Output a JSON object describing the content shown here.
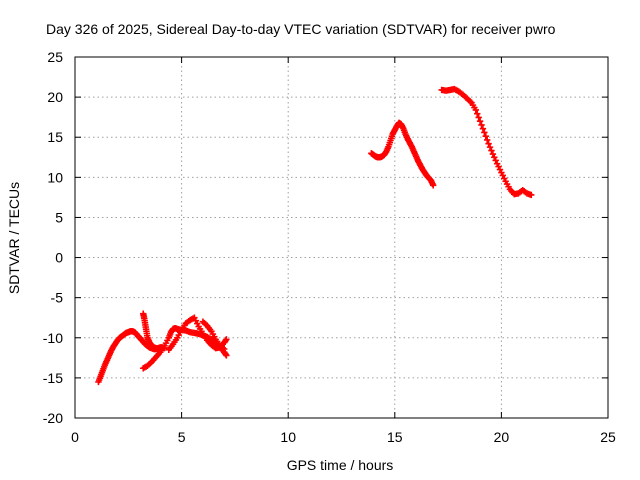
{
  "chart_data": {
    "type": "scatter",
    "title": "Day 326 of 2025, Sidereal Day-to-day VTEC variation (SDTVAR) for receiver pwro",
    "xlabel": "GPS time / hours",
    "ylabel": "SDTVAR / TECUs",
    "xlim": [
      0,
      25
    ],
    "ylim": [
      -20,
      25
    ],
    "xticks": [
      0,
      5,
      10,
      15,
      20,
      25
    ],
    "yticks": [
      -20,
      -15,
      -10,
      -5,
      0,
      5,
      10,
      15,
      20,
      25
    ],
    "xtick_labels": [
      "0",
      "5",
      "10",
      "15",
      "20",
      "25"
    ],
    "ytick_labels": [
      "-20",
      "-15",
      "-10",
      "-5",
      "0",
      "5",
      "10",
      "15",
      "20",
      "25"
    ],
    "grid": true,
    "marker": "+",
    "color": "#ff0000",
    "series": [
      {
        "name": "seg-1",
        "x": [
          1.1,
          1.2,
          1.3,
          1.4,
          1.5,
          1.6,
          1.7,
          1.8,
          1.9,
          2.0,
          2.1,
          2.2,
          2.3,
          2.4,
          2.5,
          2.6,
          2.7,
          2.8,
          2.9,
          3.0,
          3.1,
          3.2,
          3.3,
          3.4,
          3.5,
          3.6,
          3.7,
          3.8,
          3.9,
          4.0,
          4.1,
          4.2
        ],
        "y": [
          -15.5,
          -14.8,
          -14.1,
          -13.4,
          -12.8,
          -12.2,
          -11.6,
          -11.1,
          -10.7,
          -10.3,
          -10.0,
          -9.8,
          -9.6,
          -9.4,
          -9.3,
          -9.2,
          -9.2,
          -9.3,
          -9.6,
          -9.9,
          -10.2,
          -10.5,
          -10.8,
          -11.0,
          -11.2,
          -11.3,
          -11.4,
          -11.4,
          -11.3,
          -11.2,
          -11.2,
          -11.3
        ]
      },
      {
        "name": "seg-2",
        "x": [
          3.2,
          3.25,
          3.3,
          3.35,
          3.4,
          3.5,
          3.6,
          3.7,
          3.8
        ],
        "y": [
          -7.0,
          -7.6,
          -8.4,
          -9.2,
          -10.0,
          -10.6,
          -11.0,
          -11.2,
          -11.3
        ]
      },
      {
        "name": "seg-3",
        "x": [
          3.2,
          3.4,
          3.6,
          3.8,
          4.0,
          4.2,
          4.4,
          4.5,
          4.6,
          4.7,
          4.8,
          4.9,
          5.0,
          5.2,
          5.4,
          5.6,
          5.8,
          6.0,
          6.2,
          6.4,
          6.6,
          6.8,
          7.0,
          7.1
        ],
        "y": [
          -13.8,
          -13.5,
          -13.0,
          -12.4,
          -11.8,
          -11.0,
          -10.0,
          -9.3,
          -8.9,
          -8.8,
          -8.9,
          -9.0,
          -9.0,
          -9.1,
          -9.3,
          -9.4,
          -9.5,
          -9.7,
          -9.9,
          -10.2,
          -10.6,
          -11.2,
          -11.8,
          -12.2
        ]
      },
      {
        "name": "seg-4",
        "x": [
          4.4,
          4.6,
          4.8,
          5.0,
          5.2,
          5.4,
          5.6,
          5.8,
          6.0,
          6.2,
          6.4,
          6.6,
          6.8,
          7.0,
          7.1
        ],
        "y": [
          -11.5,
          -10.8,
          -10.0,
          -9.0,
          -8.2,
          -7.8,
          -7.5,
          -8.6,
          -9.5,
          -10.3,
          -10.9,
          -11.3,
          -11.2,
          -10.6,
          -10.2
        ]
      },
      {
        "name": "seg-5",
        "x": [
          6.0,
          6.2,
          6.4,
          6.6,
          6.8,
          7.0
        ],
        "y": [
          -8.0,
          -8.5,
          -9.2,
          -10.2,
          -11.0,
          -11.4
        ]
      },
      {
        "name": "seg-6",
        "x": [
          13.9,
          14.0,
          14.1,
          14.2,
          14.3,
          14.4,
          14.5,
          14.6,
          14.7,
          14.8,
          14.9,
          15.0,
          15.1,
          15.2,
          15.3,
          15.4,
          15.5,
          15.6,
          15.7,
          15.8,
          15.9,
          16.0,
          16.1,
          16.2,
          16.3,
          16.4,
          16.5,
          16.6,
          16.7,
          16.8
        ],
        "y": [
          13.0,
          12.8,
          12.6,
          12.5,
          12.5,
          12.6,
          12.8,
          13.2,
          13.8,
          14.6,
          15.4,
          15.9,
          16.4,
          16.8,
          16.6,
          16.1,
          15.4,
          14.8,
          14.3,
          13.8,
          13.2,
          12.6,
          12.0,
          11.5,
          11.0,
          10.6,
          10.2,
          9.9,
          9.6,
          9.0
        ]
      },
      {
        "name": "seg-7",
        "x": [
          17.2,
          17.4,
          17.6,
          17.8,
          18.0,
          18.2,
          18.4,
          18.6,
          18.8,
          19.0,
          19.2,
          19.4,
          19.6,
          19.8,
          20.0,
          20.2,
          20.4,
          20.6,
          20.8,
          21.0,
          21.2,
          21.4
        ],
        "y": [
          20.9,
          20.8,
          20.9,
          21.0,
          20.7,
          20.3,
          19.8,
          19.3,
          18.4,
          17.0,
          15.6,
          14.2,
          12.9,
          11.7,
          10.6,
          9.5,
          8.5,
          7.9,
          8.0,
          8.4,
          8.0,
          7.8
        ]
      }
    ]
  }
}
